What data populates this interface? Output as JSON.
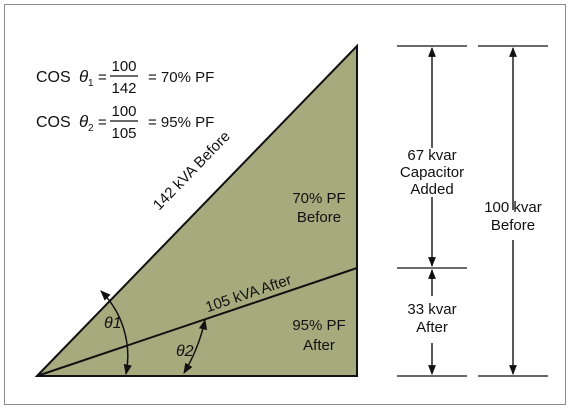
{
  "formulas": [
    {
      "cos": "COS",
      "theta": "θ",
      "sub": "1",
      "num": "100",
      "den": "142",
      "result": "= 70% PF"
    },
    {
      "cos": "COS",
      "theta": "θ",
      "sub": "2",
      "num": "100",
      "den": "105",
      "result": "= 95% PF"
    }
  ],
  "triangle": {
    "hyp_before_label": "142 kVA Before",
    "hyp_after_label": "105 kVA After",
    "region_before": [
      "70% PF",
      "Before"
    ],
    "region_after": [
      "95% PF",
      "After"
    ],
    "angle1": "θ1",
    "angle2": "θ2",
    "fill_color": "#a6ab7e"
  },
  "dimensions": {
    "capacitor": [
      "67 kvar",
      "Capacitor",
      "Added"
    ],
    "after": [
      "33 kvar",
      "After"
    ],
    "before": [
      "100 kvar",
      "Before"
    ]
  }
}
